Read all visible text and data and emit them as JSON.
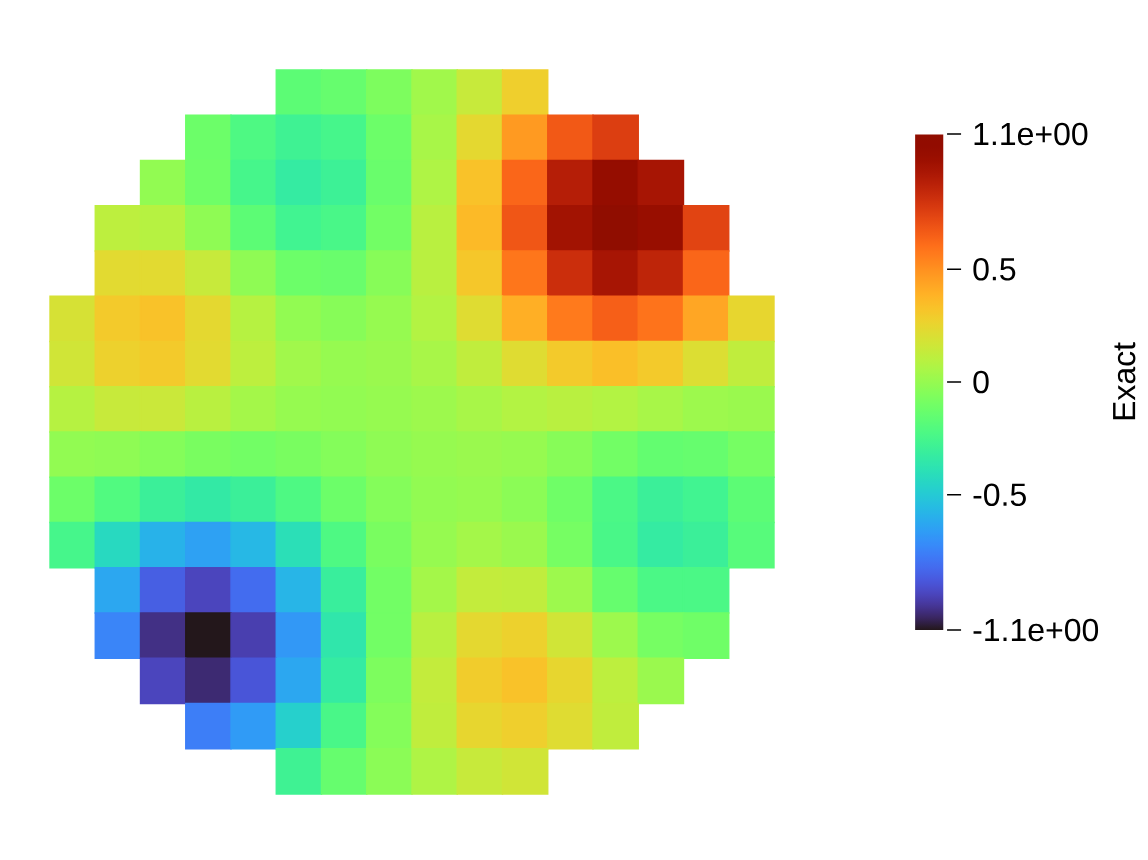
{
  "chart_data": {
    "type": "heatmap",
    "categories": [
      null,
      null,
      null,
      null,
      null,
      null,
      null,
      null,
      null,
      null,
      null,
      null,
      null,
      null,
      null,
      null
    ],
    "y_categories": [
      null,
      null,
      null,
      null,
      null,
      null,
      null,
      null,
      null,
      null,
      null,
      null,
      null,
      null,
      null,
      null
    ],
    "cells": [
      [
        null,
        null,
        null,
        null,
        null,
        -0.17,
        -0.14,
        -0.07,
        0.03,
        0.14,
        0.28,
        null,
        null,
        null,
        null,
        null
      ],
      [
        null,
        null,
        null,
        -0.12,
        -0.22,
        -0.28,
        -0.25,
        -0.12,
        0.05,
        0.24,
        0.47,
        0.67,
        0.76,
        null,
        null,
        null
      ],
      [
        null,
        null,
        -0.01,
        -0.11,
        -0.25,
        -0.33,
        -0.29,
        -0.13,
        0.07,
        0.33,
        0.63,
        0.89,
        1.03,
        0.94,
        null,
        null
      ],
      [
        null,
        0.11,
        0.09,
        -0.02,
        -0.17,
        -0.27,
        -0.24,
        -0.1,
        0.1,
        0.36,
        0.68,
        0.96,
        1.1,
        1.01,
        0.74,
        null
      ],
      [
        null,
        0.23,
        0.23,
        0.14,
        -0.02,
        -0.12,
        -0.13,
        -0.04,
        0.1,
        0.31,
        0.58,
        0.82,
        0.94,
        0.86,
        0.63,
        null
      ],
      [
        0.19,
        0.3,
        0.33,
        0.24,
        0.09,
        -0.01,
        -0.04,
        0,
        0.08,
        0.22,
        0.4,
        0.57,
        0.65,
        0.59,
        0.43,
        0.25
      ],
      [
        0.17,
        0.27,
        0.3,
        0.23,
        0.11,
        0.03,
        0,
        0.01,
        0.05,
        0.12,
        0.22,
        0.3,
        0.34,
        0.3,
        0.21,
        0.12
      ],
      [
        0.09,
        0.14,
        0.15,
        0.1,
        0.04,
        0,
        -0.01,
        0,
        0.02,
        0.05,
        0.08,
        0.1,
        0.08,
        0.05,
        0.02,
        0.01
      ],
      [
        -0.01,
        -0.02,
        -0.05,
        -0.08,
        -0.1,
        -0.08,
        -0.05,
        -0.02,
        0,
        0.01,
        0,
        -0.04,
        -0.1,
        -0.15,
        -0.14,
        -0.09
      ],
      [
        -0.12,
        -0.21,
        -0.3,
        -0.34,
        -0.3,
        -0.22,
        -0.12,
        -0.05,
        -0.01,
        0,
        -0.03,
        -0.11,
        -0.23,
        -0.3,
        -0.27,
        -0.17
      ],
      [
        -0.25,
        -0.43,
        -0.59,
        -0.65,
        -0.57,
        -0.4,
        -0.22,
        -0.08,
        0,
        0.04,
        0.01,
        -0.09,
        -0.24,
        -0.33,
        -0.3,
        -0.19
      ],
      [
        null,
        -0.63,
        -0.86,
        -0.94,
        -0.82,
        -0.58,
        -0.31,
        -0.1,
        0.04,
        0.13,
        0.12,
        0.02,
        -0.14,
        -0.23,
        -0.23,
        null
      ],
      [
        null,
        -0.74,
        -1.01,
        -1.1,
        -0.96,
        -0.68,
        -0.36,
        -0.1,
        0.1,
        0.24,
        0.27,
        0.17,
        0.02,
        -0.09,
        -0.11,
        null
      ],
      [
        null,
        null,
        -0.94,
        -1.03,
        -0.89,
        -0.63,
        -0.33,
        -0.07,
        0.13,
        0.29,
        0.33,
        0.25,
        0.11,
        0.01,
        null,
        null
      ],
      [
        null,
        null,
        null,
        -0.76,
        -0.67,
        -0.47,
        -0.24,
        -0.05,
        0.12,
        0.25,
        0.28,
        0.22,
        0.12,
        null,
        null,
        null
      ],
      [
        null,
        null,
        null,
        null,
        null,
        -0.28,
        -0.14,
        -0.03,
        0.07,
        0.14,
        0.17,
        null,
        null,
        null,
        null,
        null
      ]
    ],
    "clim": [
      -1.1,
      1.1
    ],
    "cticks": [
      {
        "value": -1.1,
        "label": "-1.1e+00"
      },
      -0.5,
      0,
      0.5,
      {
        "value": 1.1,
        "label": "1.1e+00"
      }
    ],
    "clabel": "Exact"
  }
}
